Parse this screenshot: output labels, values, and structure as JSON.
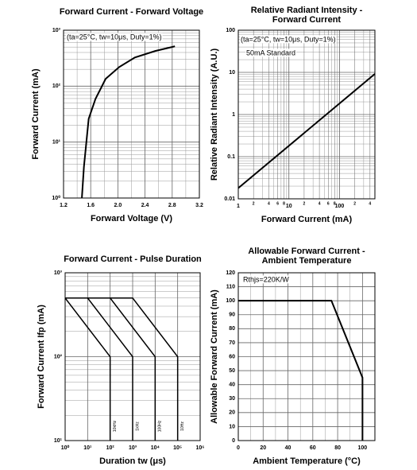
{
  "chart_data": [
    {
      "type": "line",
      "title": "Forward Current - Forward Voltage",
      "x_label": "Forward Voltage (V)",
      "y_label": "Forward Current (mA)",
      "annotations": [
        "(ta=25°C, tw=10μs, Duty=1%)"
      ],
      "x": [
        1.47,
        1.5,
        1.57,
        1.67,
        1.82,
        2.02,
        2.25,
        2.55,
        2.84
      ],
      "values": [
        1,
        3.6,
        26,
        59,
        135,
        220,
        326,
        425,
        515
      ],
      "color": "#000000",
      "xscale": "linear",
      "yscale": "log",
      "grid": true,
      "xlim": [
        1.2,
        3.2
      ],
      "xticks": [
        1.2,
        1.6,
        {
          "value": 2,
          "label": "2.0"
        },
        2.4,
        2.8,
        3.2
      ],
      "minor_xticks": [
        1.4,
        1.8,
        2.2,
        2.6,
        3
      ],
      "ylim": [
        1,
        1000
      ],
      "yticks": [
        {
          "value": 1,
          "label": "10⁰"
        },
        {
          "value": 10,
          "label": "10¹"
        },
        {
          "value": 100,
          "label": "10²"
        },
        {
          "value": 1000,
          "label": "10³"
        }
      ],
      "minor_yticks": [
        2,
        3,
        4,
        5,
        6,
        7,
        8,
        9,
        20,
        30,
        40,
        50,
        60,
        70,
        80,
        90,
        200,
        300,
        400,
        500,
        600,
        700,
        800,
        900
      ]
    },
    {
      "type": "line",
      "title": [
        "Relative Radiant Intensity -",
        "Forward Current"
      ],
      "x_label": "Forward Current (mA)",
      "y_label": "Relative Radiant Intensity (A.U.)",
      "annotations": [
        "(ta=25°C, tw=10μs, Duty=1%)",
        "50mA Standard"
      ],
      "x": [
        1,
        500
      ],
      "values": [
        0.018,
        9.2
      ],
      "color": "#000000",
      "xscale": "log",
      "yscale": "log",
      "grid": true,
      "xlim": [
        1,
        500
      ],
      "xticks": [
        1,
        2,
        4,
        6,
        8,
        10,
        {
          "value": 20,
          "label": "2"
        },
        {
          "value": 40,
          "label": "4"
        },
        {
          "value": 60,
          "label": "6"
        },
        {
          "value": 80,
          "label": "8"
        },
        100,
        {
          "value": 200,
          "label": "2"
        },
        {
          "value": 400,
          "label": "4"
        }
      ],
      "minor_xticks": [
        3,
        5,
        7,
        9,
        30,
        50,
        70,
        90,
        300
      ],
      "ylim": [
        0.01,
        100
      ],
      "yticks": [
        0.01,
        0.1,
        1,
        10,
        100
      ],
      "minor_yticks": [
        0.02,
        0.03,
        0.04,
        0.05,
        0.06,
        0.07,
        0.08,
        0.09,
        0.2,
        0.3,
        0.4,
        0.5,
        0.6,
        0.7,
        0.8,
        0.9,
        2,
        3,
        4,
        5,
        6,
        7,
        8,
        9,
        20,
        30,
        40,
        50,
        60,
        70,
        80,
        90
      ]
    },
    {
      "type": "line",
      "title": "Forward Current - Pulse Duration",
      "x_label": "Duration tw (μs)",
      "y_label": "Forward Current Ifp (mA)",
      "series": [
        {
          "name": "10kHz",
          "color": "#000000",
          "x": [
            1,
            100,
            100
          ],
          "values": [
            500,
            100,
            10
          ]
        },
        {
          "name": "1kHz",
          "color": "#000000",
          "x": [
            1,
            10,
            1000,
            1000
          ],
          "values": [
            500,
            500,
            100,
            10
          ]
        },
        {
          "name": "100Hz",
          "color": "#000000",
          "x": [
            1,
            100,
            10000,
            10000
          ],
          "values": [
            500,
            500,
            100,
            10
          ]
        },
        {
          "name": "10Hz",
          "color": "#000000",
          "x": [
            1,
            1000,
            100000,
            100000
          ],
          "values": [
            500,
            500,
            100,
            10
          ]
        }
      ],
      "xscale": "log",
      "yscale": "log",
      "grid": true,
      "xlim": [
        1,
        1000000
      ],
      "xticks": [
        {
          "value": 1,
          "label": "10⁰"
        },
        {
          "value": 10,
          "label": "10¹"
        },
        {
          "value": 100,
          "label": "10²"
        },
        {
          "value": 1000,
          "label": "10³"
        },
        {
          "value": 10000,
          "label": "10⁴"
        },
        {
          "value": 100000,
          "label": "10⁵"
        },
        {
          "value": 1000000,
          "label": "10⁶"
        }
      ],
      "ylim": [
        10,
        1000
      ],
      "yticks": [
        {
          "value": 10,
          "label": "10¹"
        },
        {
          "value": 100,
          "label": "10²"
        },
        {
          "value": 1000,
          "label": "10³"
        }
      ],
      "minor_yticks": [
        20,
        30,
        40,
        50,
        60,
        70,
        80,
        90,
        200,
        300,
        400,
        500,
        600,
        700,
        800,
        900
      ]
    },
    {
      "type": "line",
      "title": [
        "Allowable Forward Current -",
        "Ambient Temperature"
      ],
      "x_label": "Ambient Temperature (°C)",
      "y_label": "Allowable Forward Current (mA)",
      "annotations": [
        "Rthjs=220K/W"
      ],
      "x": [
        0,
        75,
        100,
        100
      ],
      "values": [
        100,
        100,
        45,
        0
      ],
      "color": "#000000",
      "xscale": "linear",
      "yscale": "linear",
      "grid": true,
      "xlim": [
        0,
        110
      ],
      "xticks": [
        0,
        20,
        40,
        60,
        80,
        100
      ],
      "minor_xticks": [
        10,
        30,
        50,
        70,
        90
      ],
      "ylim": [
        0,
        120
      ],
      "yticks": [
        0,
        10,
        20,
        30,
        40,
        50,
        60,
        70,
        80,
        90,
        100,
        110,
        120
      ]
    }
  ]
}
